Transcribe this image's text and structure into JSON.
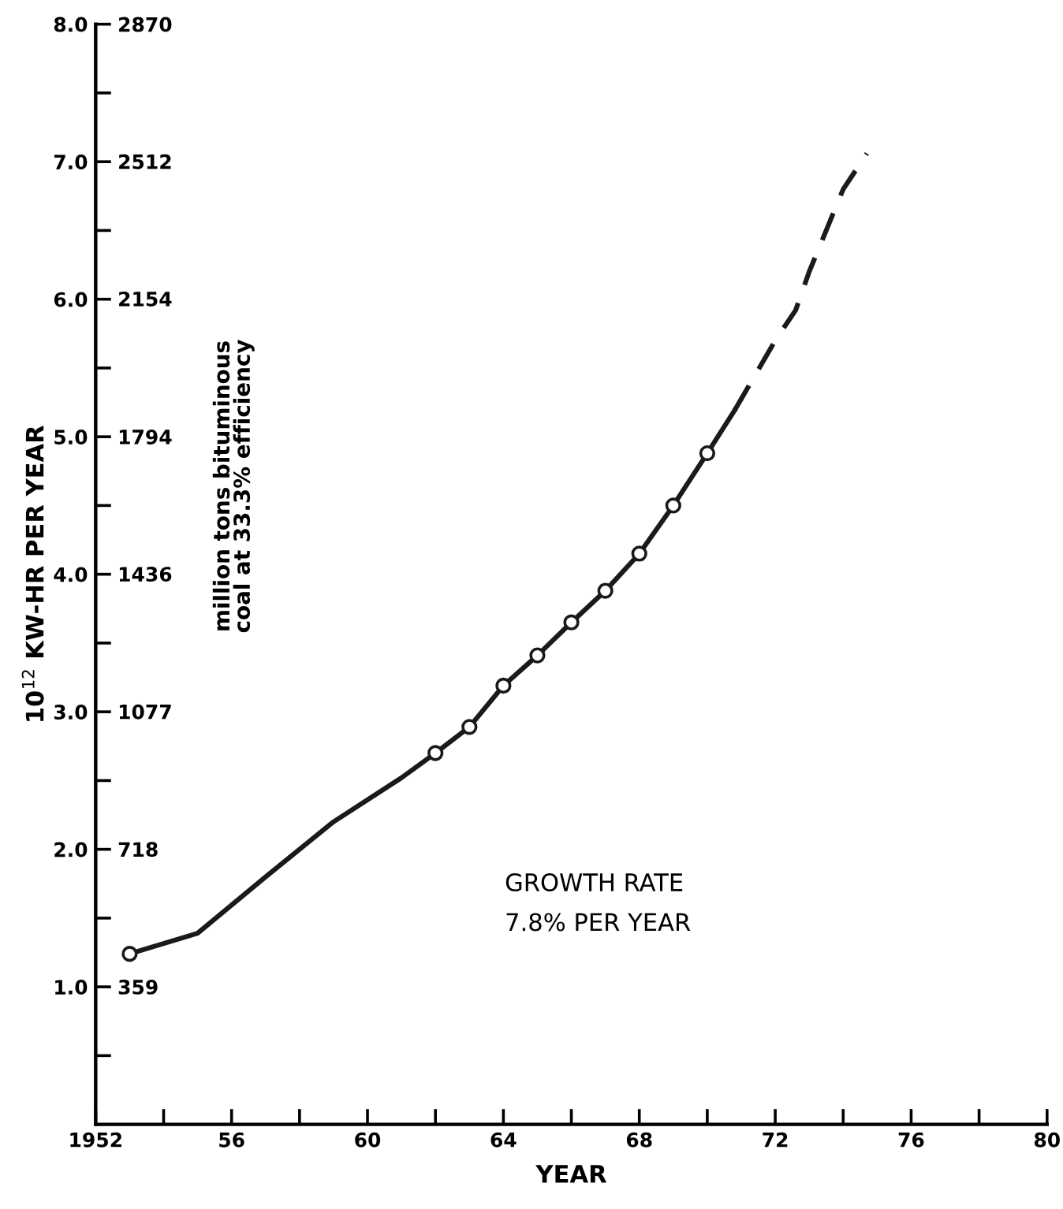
{
  "chart_data": {
    "type": "line",
    "xlabel": "YEAR",
    "ylabel": "10$^{12}$ KW-HR PER YEAR",
    "y2label": "million tons bituminous\ncoal at 33.3% efficiency",
    "series": [
      {
        "type": "scatter",
        "color": "#1a1a1a",
        "marker": "circle",
        "x": [
          1953,
          1962,
          1963,
          1964,
          1965,
          1966,
          1967,
          1968,
          1969,
          1970
        ],
        "values": [
          1.24,
          2.7,
          2.89,
          3.19,
          3.41,
          3.65,
          3.88,
          4.15,
          4.5,
          4.88
        ]
      },
      {
        "color": "#1a1a1a",
        "line_style": "solid",
        "x": [
          1953,
          1955,
          1957,
          1959,
          1961,
          1962,
          1963,
          1964,
          1965,
          1966,
          1967,
          1968,
          1969,
          1970,
          1970.8
        ],
        "values": [
          1.24,
          1.39,
          1.8,
          2.2,
          2.52,
          2.7,
          2.89,
          3.19,
          3.41,
          3.65,
          3.88,
          4.15,
          4.5,
          4.88,
          5.19
        ]
      },
      {
        "color": "#1a1a1a",
        "line_style": "dashed",
        "x": [
          1970.8,
          1972,
          1972.6,
          1973,
          1974,
          1974.7
        ],
        "values": [
          5.19,
          5.7,
          5.92,
          6.2,
          6.8,
          7.06
        ]
      }
    ],
    "xlim": [
      1952,
      1980
    ],
    "xticks": [
      1952,
      {
        "value": 1954,
        "label": null
      },
      {
        "value": 1956,
        "label": "56"
      },
      {
        "value": 1958,
        "label": null
      },
      {
        "value": 1960,
        "label": "60"
      },
      {
        "value": 1962,
        "label": null
      },
      {
        "value": 1964,
        "label": "64"
      },
      {
        "value": 1966,
        "label": null
      },
      {
        "value": 1968,
        "label": "68"
      },
      {
        "value": 1970,
        "label": null
      },
      {
        "value": 1972,
        "label": "72"
      },
      {
        "value": 1974,
        "label": null
      },
      {
        "value": 1976,
        "label": "76"
      },
      {
        "value": 1978,
        "label": null
      },
      {
        "value": 1980,
        "label": "80"
      }
    ],
    "ylim": [
      0,
      8
    ],
    "yticks": [
      {
        "value": 0.5,
        "label": null
      },
      {
        "value": 1,
        "label": "1.0"
      },
      {
        "value": 1.5,
        "label": null
      },
      {
        "value": 2,
        "label": "2.0"
      },
      {
        "value": 2.5,
        "label": null
      },
      {
        "value": 3,
        "label": "3.0"
      },
      {
        "value": 3.5,
        "label": null
      },
      {
        "value": 4,
        "label": "4.0"
      },
      {
        "value": 4.5,
        "label": null
      },
      {
        "value": 5,
        "label": "5.0"
      },
      {
        "value": 5.5,
        "label": null
      },
      {
        "value": 6,
        "label": "6.0"
      },
      {
        "value": 6.5,
        "label": null
      },
      {
        "value": 7,
        "label": "7.0"
      },
      {
        "value": 7.5,
        "label": null
      },
      {
        "value": 8,
        "label": "8.0"
      }
    ],
    "y2lim": [
      0,
      2870
    ],
    "y2ticks": [
      359,
      718,
      1077,
      1436,
      1794,
      2154,
      2512,
      2870
    ],
    "grid": false,
    "legend": false,
    "annotations": [
      "GROWTH RATE\n7.8% PER YEAR"
    ]
  }
}
